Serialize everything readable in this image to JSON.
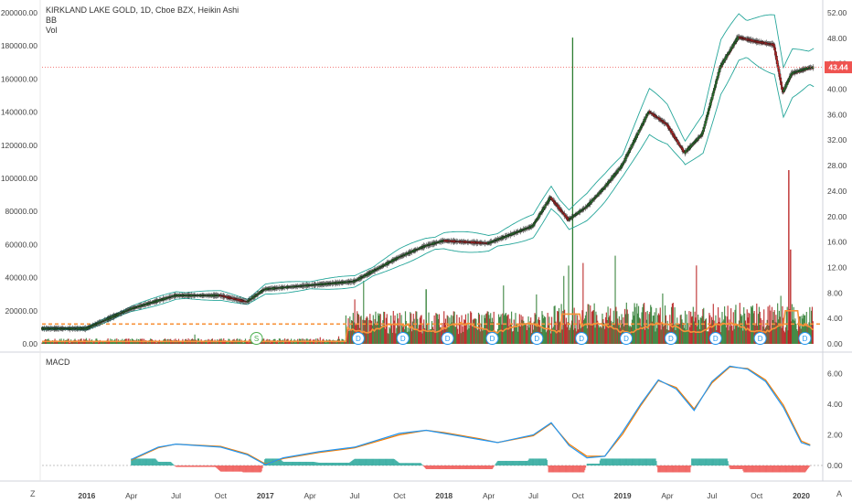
{
  "legend": {
    "title": "KIRKLAND LAKE GOLD, 1D, Cboe BZX, Heikin Ashi",
    "bb": "BB",
    "vol": "Vol",
    "macd": "MACD"
  },
  "corner": {
    "left": "Z",
    "right": "A"
  },
  "colors": {
    "up": "#26a69a",
    "down": "#ef5350",
    "price_up": "#2e7d32",
    "price_down": "#c62828",
    "bb_band": "#26a69a",
    "bb_basis": "#e57373",
    "vol_up": "#2e7d32",
    "vol_down": "#b71c1c",
    "vol_ma": "#f7923a",
    "macd": "#2196f3",
    "signal": "#f57c00",
    "last_price": "#ef5350",
    "marker": "#2196f3",
    "marker_s": "#4caf50"
  },
  "chart_data": [
    {
      "type": "line",
      "title": "",
      "x_ticks": [
        "2016",
        "Apr",
        "Jul",
        "Oct",
        "2017",
        "Apr",
        "Jul",
        "Oct",
        "2018",
        "Apr",
        "Jul",
        "Oct",
        "2019",
        "Apr",
        "Jul",
        "Oct",
        "2020"
      ],
      "y_right_ticks": [
        "52.00",
        "48.00",
        "44.00",
        "40.00",
        "36.00",
        "32.00",
        "28.00",
        "24.00",
        "20.00",
        "16.00",
        "12.00",
        "8.00",
        "4.00",
        "0.00"
      ],
      "y_right_range": [
        0,
        52
      ],
      "y_left_ticks": [
        "200000.00",
        "180000.00",
        "160000.00",
        "140000.00",
        "120000.00",
        "100000.00",
        "80000.00",
        "60000.00",
        "40000.00",
        "20000.00",
        "0.00"
      ],
      "y_left_range": [
        0,
        200000
      ],
      "last_price_label": "43.44",
      "last_price": 43.44,
      "price_series": {
        "x": [
          2015.75,
          2016.0,
          2016.25,
          2016.5,
          2016.75,
          2016.9,
          2017.0,
          2017.25,
          2017.5,
          2017.75,
          2017.9,
          2018.0,
          2018.25,
          2018.5,
          2018.6,
          2018.7,
          2018.8,
          2018.9,
          2019.0,
          2019.15,
          2019.25,
          2019.35,
          2019.45,
          2019.55,
          2019.65,
          2019.75,
          2019.85,
          2019.9,
          2019.95,
          2020.05
        ],
        "values": [
          2.4,
          2.4,
          5.5,
          7.6,
          7.6,
          6.6,
          8.6,
          9.2,
          9.8,
          13.6,
          15.4,
          16.2,
          15.8,
          18.5,
          23.0,
          19.5,
          21.5,
          24.5,
          28.0,
          36.5,
          34.5,
          30.0,
          33.0,
          43.5,
          48.2,
          47.5,
          47.0,
          39.5,
          42.5,
          43.4
        ]
      },
      "volume_ma_level": 12000,
      "volume_spikes": [
        {
          "x": 2018.72,
          "value": 185000
        },
        {
          "x": 2019.93,
          "value": 105000
        },
        {
          "x": 2019.94,
          "value": 57000
        },
        {
          "x": 2017.9,
          "value": 33000
        }
      ],
      "event_markers": [
        {
          "x": 2016.95,
          "label": "S"
        },
        {
          "x": 2017.52,
          "label": "D"
        },
        {
          "x": 2017.77,
          "label": "D"
        },
        {
          "x": 2018.02,
          "label": "D"
        },
        {
          "x": 2018.27,
          "label": "D"
        },
        {
          "x": 2018.52,
          "label": "D"
        },
        {
          "x": 2018.77,
          "label": "D"
        },
        {
          "x": 2019.02,
          "label": "D"
        },
        {
          "x": 2019.27,
          "label": "D"
        },
        {
          "x": 2019.52,
          "label": "D"
        },
        {
          "x": 2019.77,
          "label": "D"
        },
        {
          "x": 2020.02,
          "label": "D"
        }
      ]
    },
    {
      "type": "line",
      "title": "",
      "y_ticks": [
        "6.00",
        "4.00",
        "2.00",
        "0.00"
      ],
      "y_range": [
        -0.9,
        7.0
      ],
      "macd": {
        "x": [
          2016.25,
          2016.4,
          2016.5,
          2016.75,
          2016.9,
          2017.0,
          2017.1,
          2017.3,
          2017.5,
          2017.75,
          2017.9,
          2018.0,
          2018.2,
          2018.3,
          2018.5,
          2018.6,
          2018.7,
          2018.8,
          2018.9,
          2019.0,
          2019.1,
          2019.2,
          2019.3,
          2019.4,
          2019.5,
          2019.6,
          2019.7,
          2019.8,
          2019.9,
          2020.0,
          2020.05
        ],
        "values": [
          0.4,
          1.2,
          1.4,
          1.2,
          0.7,
          0.05,
          0.5,
          0.9,
          1.2,
          2.1,
          2.3,
          2.1,
          1.7,
          1.5,
          2.0,
          2.8,
          1.3,
          0.5,
          0.6,
          2.2,
          4.0,
          5.6,
          5.0,
          3.6,
          5.5,
          6.5,
          6.3,
          5.5,
          3.8,
          1.5,
          1.3
        ]
      },
      "signal": {
        "x": [
          2016.25,
          2016.4,
          2016.5,
          2016.75,
          2016.9,
          2017.0,
          2017.1,
          2017.3,
          2017.5,
          2017.75,
          2017.9,
          2018.0,
          2018.2,
          2018.3,
          2018.5,
          2018.6,
          2018.7,
          2018.8,
          2018.9,
          2019.0,
          2019.1,
          2019.2,
          2019.3,
          2019.4,
          2019.5,
          2019.6,
          2019.7,
          2019.8,
          2019.9,
          2020.0,
          2020.05
        ],
        "values": [
          0.35,
          1.15,
          1.4,
          1.25,
          0.75,
          0.1,
          0.45,
          0.85,
          1.15,
          2.0,
          2.3,
          2.15,
          1.75,
          1.5,
          1.95,
          2.75,
          1.4,
          0.6,
          0.6,
          2.05,
          3.9,
          5.55,
          5.1,
          3.7,
          5.4,
          6.45,
          6.35,
          5.6,
          3.95,
          1.6,
          1.35
        ]
      }
    }
  ]
}
